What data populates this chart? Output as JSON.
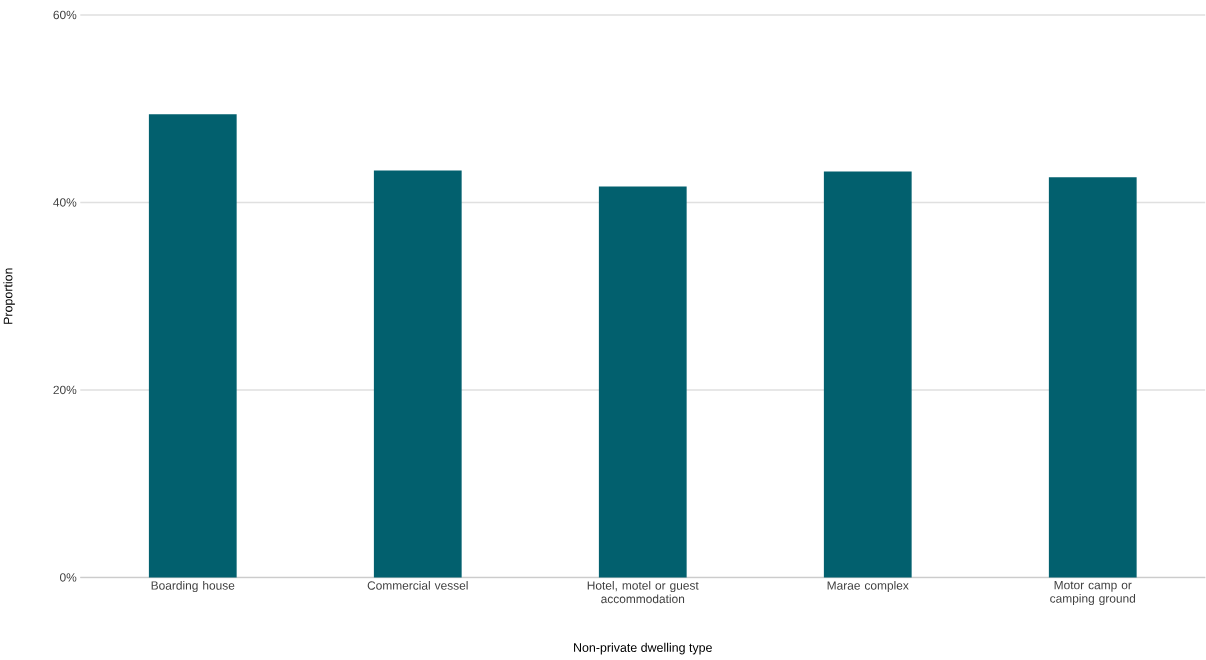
{
  "chart_data": {
    "type": "bar",
    "xlabel": "Non-private dwelling type",
    "ylabel": "Proportion",
    "categories": [
      "Boarding house",
      "Commercial vessel",
      "Hotel, motel or guest accommodation",
      "Marae complex",
      "Motor camp or camping ground"
    ],
    "values": [
      49.4,
      43.4,
      41.7,
      43.3,
      42.7
    ],
    "color": "#02606e",
    "ylim": [
      0,
      60
    ],
    "yticks": [
      {
        "value": 0,
        "label": "0%"
      },
      {
        "value": 20,
        "label": "20%"
      },
      {
        "value": 40,
        "label": "40%"
      },
      {
        "value": 60,
        "label": "60%"
      }
    ],
    "grid": "y"
  }
}
